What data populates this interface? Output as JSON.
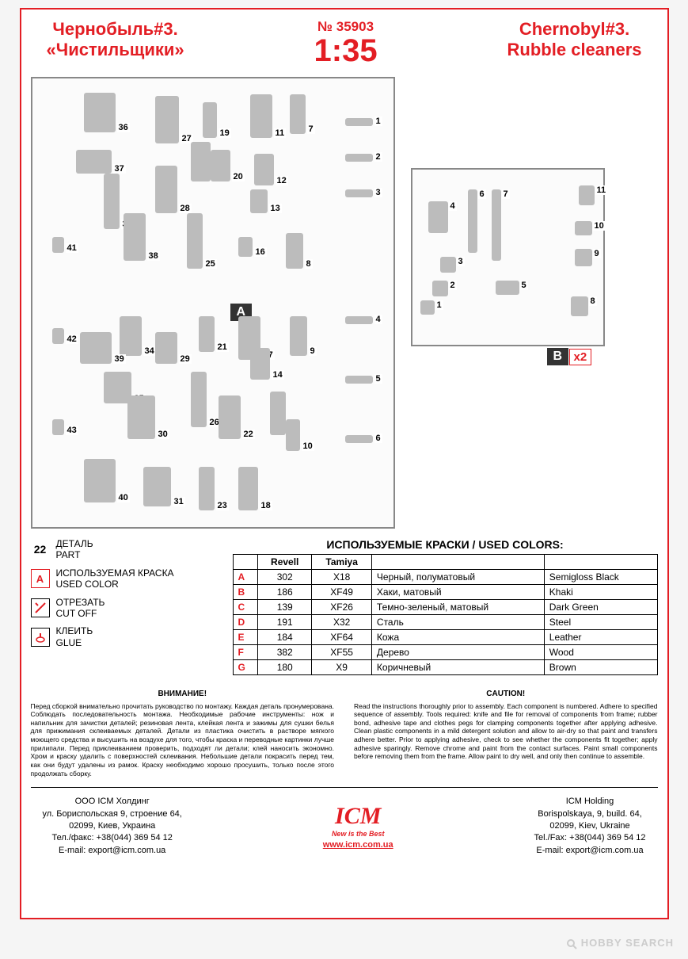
{
  "header": {
    "title_ru_line1": "Чернобыль#3.",
    "title_ru_line2": "«Чистильщики»",
    "product_no": "№ 35903",
    "scale": "1:35",
    "title_en_line1": "Chernobyl#3.",
    "title_en_line2": "Rubble cleaners"
  },
  "sprue_a": {
    "label": "A",
    "parts": [
      36,
      27,
      19,
      11,
      7,
      1,
      37,
      24,
      20,
      12,
      2,
      32,
      28,
      13,
      3,
      41,
      38,
      25,
      16,
      8,
      34,
      21,
      17,
      9,
      4,
      42,
      39,
      29,
      14,
      35,
      26,
      5,
      30,
      22,
      15,
      43,
      10,
      6,
      40,
      31,
      23,
      18
    ]
  },
  "sprue_b": {
    "label": "B",
    "multiplier": "x2",
    "parts": [
      11,
      4,
      6,
      7,
      10,
      3,
      9,
      2,
      5,
      1,
      8
    ]
  },
  "legend": {
    "part_label": "22",
    "part_text_ru": "ДЕТАЛЬ",
    "part_text_en": "PART",
    "color_icon": "A",
    "color_text_ru": "ИСПОЛЬЗУЕМАЯ КРАСКА",
    "color_text_en": "USED COLOR",
    "cut_text_ru": "ОТРЕЗАТЬ",
    "cut_text_en": "CUT OFF",
    "glue_text_ru": "КЛЕИТЬ",
    "glue_text_en": "GLUE"
  },
  "color_table": {
    "title": "ИСПОЛЬЗУЕМЫЕ КРАСКИ / USED COLORS:",
    "headers": [
      "",
      "Revell",
      "Tamiya",
      "",
      ""
    ],
    "rows": [
      {
        "letter": "A",
        "revell": "302",
        "tamiya": "X18",
        "ru": "Черный, полуматовый",
        "en": "Semigloss Black"
      },
      {
        "letter": "B",
        "revell": "186",
        "tamiya": "XF49",
        "ru": "Хаки, матовый",
        "en": "Khaki"
      },
      {
        "letter": "C",
        "revell": "139",
        "tamiya": "XF26",
        "ru": "Темно-зеленый, матовый",
        "en": "Dark Green"
      },
      {
        "letter": "D",
        "revell": "191",
        "tamiya": "X32",
        "ru": "Сталь",
        "en": "Steel"
      },
      {
        "letter": "E",
        "revell": "184",
        "tamiya": "XF64",
        "ru": "Кожа",
        "en": "Leather"
      },
      {
        "letter": "F",
        "revell": "382",
        "tamiya": "XF55",
        "ru": "Дерево",
        "en": "Wood"
      },
      {
        "letter": "G",
        "revell": "180",
        "tamiya": "X9",
        "ru": "Коричневый",
        "en": "Brown"
      }
    ]
  },
  "warnings": {
    "ru_title": "ВНИМАНИЕ!",
    "ru_body": "Перед сборкой внимательно прочитать руководство по монтажу. Каждая деталь пронумерована. Соблюдать последовательность монтажа. Необходимые рабочие инструменты: нож и напильник для зачистки деталей; резиновая лента, клейкая лента и зажимы для сушки белья для прижимания склеиваемых деталей. Детали из пластика очистить в растворе мягкого моющего средства и высушить на воздухе для того, чтобы краска и переводные картинки лучше прилипали. Перед приклеиванием проверить, подходят ли детали; клей наносить экономно. Хром и краску удалить с поверхностей склеивания. Небольшие детали покрасить перед тем, как они будут удалены из рамок. Краску необходимо хорошо просушить, только после этого продолжать сборку.",
    "en_title": "CAUTION!",
    "en_body": "Read the instructions thoroughly prior to assembly. Each component is numbered. Adhere to specified sequence of assembly. Tools required: knife and file for removal of components from frame; rubber bond, adhesive tape and clothes pegs for clamping components together after applying adhesive. Clean plastic components in a mild detergent solution and allow to air-dry so that paint and transfers adhere better. Prior to applying adhesive, check to see whether the components fit together; apply adhesive sparingly. Remove chrome and paint from the contact surfaces. Paint small components before removing them from the frame. Allow paint to dry well, and only then continue to assemble."
  },
  "footer": {
    "ru": {
      "line1": "ООО ICM Холдинг",
      "line2": "ул. Бориспольская 9, строение 64,",
      "line3": "02099, Киев, Украина",
      "line4": "Тел./факс: +38(044) 369 54 12",
      "line5": "E-mail: export@icm.com.ua"
    },
    "logo": {
      "text": "ICM",
      "tagline": "New is the Best",
      "url": "www.icm.com.ua"
    },
    "en": {
      "line1": "ICM Holding",
      "line2": "Borispolskaya, 9, build. 64,",
      "line3": "02099, Kiev, Ukraine",
      "line4": "Tel./Fax: +38(044) 369 54 12",
      "line5": "E-mail: export@icm.com.ua"
    }
  },
  "watermark": "HOBBY SEARCH",
  "colors": {
    "accent": "#e31e24",
    "sprue_part": "#bcbcbc",
    "border": "#888888",
    "text": "#000000",
    "background": "#ffffff"
  }
}
